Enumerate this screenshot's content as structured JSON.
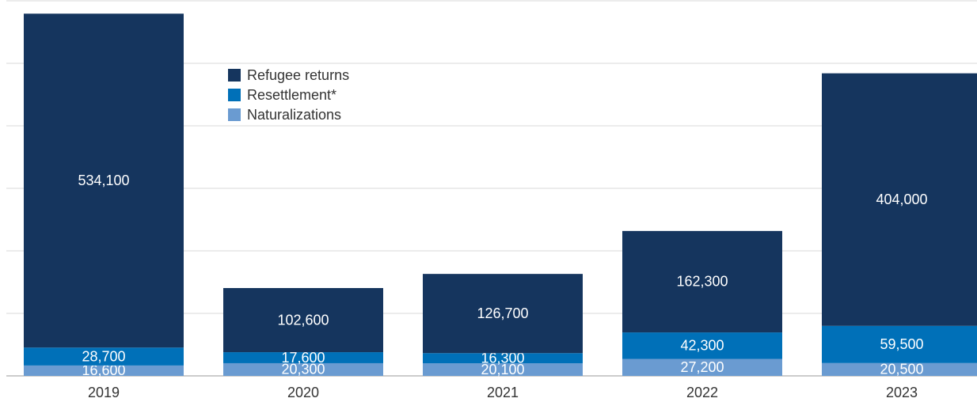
{
  "chart_data": {
    "type": "stacked_bar",
    "categories": [
      "2019",
      "2020",
      "2021",
      "2022",
      "2023"
    ],
    "series": [
      {
        "name": "Naturalizations",
        "color": "#6a9bd1",
        "values": [
          16600,
          20300,
          20100,
          27200,
          20500
        ],
        "value_labels": [
          "16,600",
          "20,300",
          "20,100",
          "27,200",
          "20,500"
        ]
      },
      {
        "name": "Resettlement*",
        "color": "#0070b8",
        "values": [
          28700,
          17600,
          16300,
          42300,
          59500
        ],
        "value_labels": [
          "28,700",
          "17,600",
          "16,300",
          "42,300",
          "59,500"
        ]
      },
      {
        "name": "Refugee returns",
        "color": "#15355e",
        "values": [
          534100,
          102600,
          126700,
          162300,
          404000
        ],
        "value_labels": [
          "534,100",
          "102,600",
          "126,700",
          "162,300",
          "404,000"
        ]
      }
    ],
    "ylim": [
      0,
      600000
    ],
    "yticks": [
      0,
      100000,
      200000,
      300000,
      400000,
      500000,
      600000
    ],
    "grid": true
  }
}
